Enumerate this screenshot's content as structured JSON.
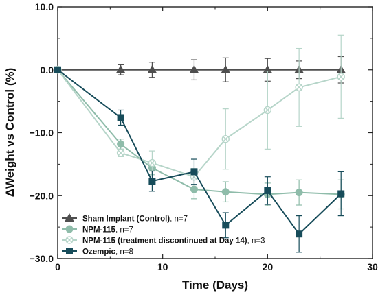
{
  "chart_data": {
    "type": "line",
    "xlabel": "Time (Days)",
    "ylabel": "ΔWeight vs Control (%)",
    "xlim": [
      0,
      30
    ],
    "ylim": [
      -30,
      10
    ],
    "xticks": [
      0,
      10,
      20,
      30
    ],
    "yticks": [
      10,
      0,
      -10,
      -20,
      -30
    ],
    "xtick_labels": [
      "0",
      "10",
      "20",
      "30"
    ],
    "ytick_labels": [
      "10.0",
      "0.0",
      "−10.0",
      "−20.0",
      "−30.0"
    ],
    "grid": false,
    "legend_position": "bottom-left",
    "series": [
      {
        "name": "Sham Implant (Control)",
        "n_label": ", n=7",
        "color": "#4f4f4f",
        "marker": "triangle",
        "x": [
          0,
          6,
          9,
          13,
          16,
          20,
          23,
          27
        ],
        "y": [
          0,
          0,
          0,
          0,
          0,
          0,
          0,
          0
        ],
        "err": [
          0,
          0.8,
          1.2,
          1.6,
          1.9,
          1.8,
          1.4,
          2.1
        ]
      },
      {
        "name": "NPM-115",
        "n_label": ", n=7",
        "color": "#8fbcaa",
        "marker": "circle",
        "x": [
          0,
          6,
          9,
          13,
          16,
          20,
          23,
          27
        ],
        "y": [
          0,
          -11.8,
          -15.6,
          -19.0,
          -19.4,
          -19.8,
          -19.5,
          -19.8
        ],
        "err": [
          0,
          0.8,
          1.0,
          1.5,
          1.6,
          1.8,
          2.0,
          2.3
        ]
      },
      {
        "name": "NPM-115 (treatment discontinued at Day 14)",
        "n_label": ", n=3",
        "color": "#b6d5c9",
        "marker": "x-circle",
        "x": [
          0,
          6,
          9,
          13,
          16,
          20,
          23,
          27
        ],
        "y": [
          0,
          -13.2,
          -14.8,
          -17.0,
          -11.0,
          -6.4,
          -2.8,
          -1.1
        ],
        "err": [
          0,
          0.6,
          1.9,
          1.3,
          4.8,
          6.2,
          6.2,
          6.6
        ]
      },
      {
        "name": "Ozempic",
        "n_label": ", n=8",
        "color": "#174c5a",
        "marker": "square",
        "x": [
          0,
          6,
          9,
          13,
          16,
          20,
          23,
          27
        ],
        "y": [
          0,
          -7.6,
          -17.7,
          -16.2,
          -24.7,
          -19.2,
          -26.1,
          -19.7
        ],
        "err": [
          0,
          1.2,
          1.6,
          2.0,
          2.0,
          2.2,
          2.9,
          3.5
        ]
      }
    ]
  }
}
